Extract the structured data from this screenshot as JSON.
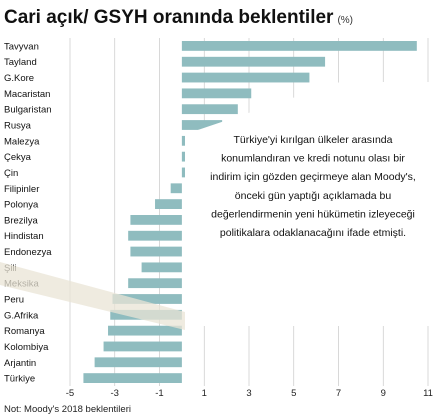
{
  "chart_data": {
    "type": "bar",
    "orientation": "horizontal",
    "title": "Cari açık/ GSYH oranında beklentiler",
    "title_unit": "(%)",
    "categories": [
      "Tavyvan",
      "Tayland",
      "G.Kore",
      "Macaristan",
      "Bulgaristan",
      "Rusya",
      "Malezya",
      "Çekya",
      "Çin",
      "Filipinler",
      "Polonya",
      "Brezilya",
      "Hindistan",
      "Endonezya",
      "Şili",
      "Meksika",
      "Peru",
      "G.Afrika",
      "Romanya",
      "Kolombiya",
      "Arjantin",
      "Türkiye"
    ],
    "values": [
      10.5,
      6.4,
      5.7,
      3.1,
      2.5,
      1.8,
      1.2,
      0.5,
      0.3,
      -0.5,
      -1.2,
      -2.3,
      -2.4,
      -2.3,
      -1.8,
      -2.4,
      -3.1,
      -3.2,
      -3.3,
      -3.5,
      -3.9,
      -4.4
    ],
    "xlim": [
      -5,
      11
    ],
    "xticks": [
      "-5",
      "-3",
      "-1",
      "1",
      "3",
      "5",
      "7",
      "9",
      "11"
    ],
    "grid": "vertical gridlines",
    "bar_color": "#8fbcbf",
    "annotation": "Türkiye'yi kırılgan ülkeler arasında konumlandıran ve kredi notunu olası bir indirim için gözden geçirmeye alan Moody's, önceki gün yaptığı açıklamada bu değerlendirmenin yeni hükümetin izleyeceği politikalara odaklanacağını ifade etmişti.",
    "note": "Not: Moody's 2018 beklentileri"
  }
}
